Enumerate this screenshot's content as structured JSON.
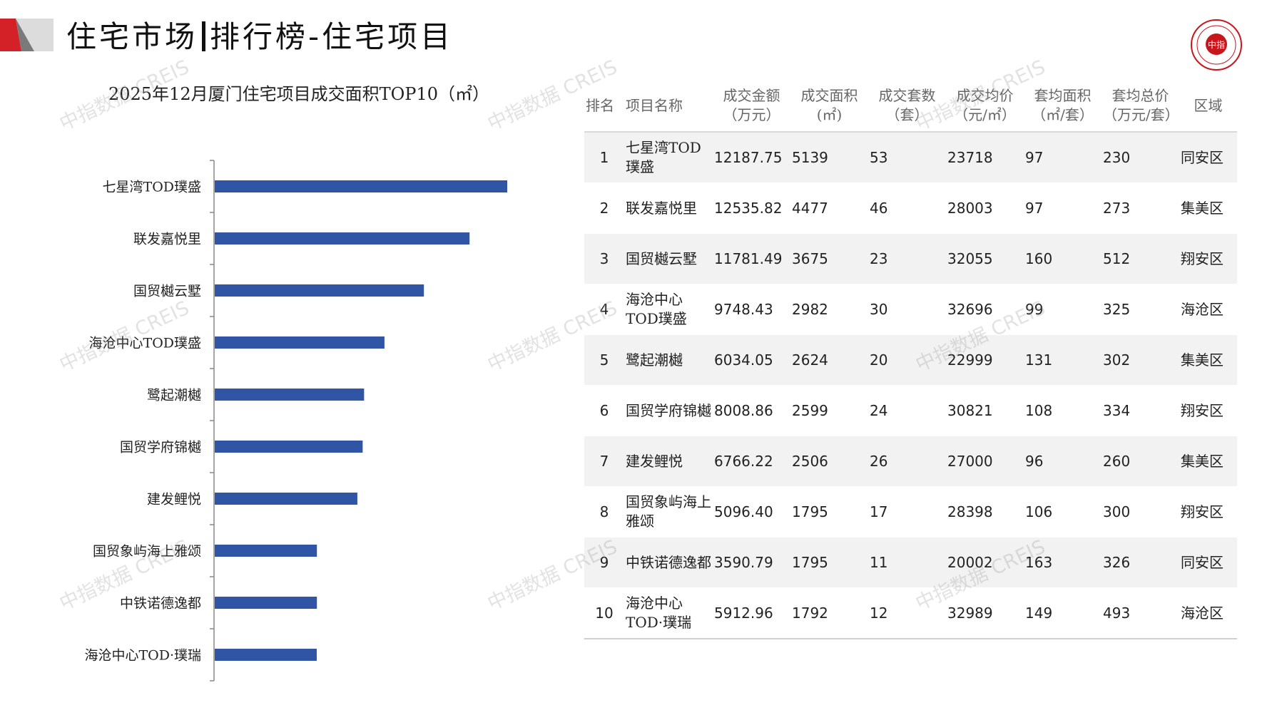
{
  "header": {
    "title_left": "住宅市场",
    "title_right": "排行榜-住宅项目",
    "logo_text": "中指"
  },
  "watermark": "中指数据 CREIS",
  "chart_data": {
    "type": "bar",
    "orientation": "horizontal",
    "title": "2025年12月厦门住宅项目成交面积TOP10（㎡）",
    "categories": [
      "七星湾TOD璞盛",
      "联发嘉悦里",
      "国贸樾云墅",
      "海沧中心TOD璞盛",
      "鹭起潮樾",
      "国贸学府锦樾",
      "建发鲤悦",
      "国贸象屿海上雅颂",
      "中铁诺德逸都",
      "海沧中心TOD·璞瑞"
    ],
    "values": [
      5139,
      4477,
      3675,
      2982,
      2624,
      2599,
      2506,
      1795,
      1795,
      1792
    ],
    "xlim": [
      0,
      6000
    ],
    "bar_color": "#2f55a4",
    "grid": false
  },
  "table": {
    "headers": [
      {
        "l1": "排名",
        "l2": ""
      },
      {
        "l1": "项目名称",
        "l2": ""
      },
      {
        "l1": "成交金额",
        "l2": "（万元）"
      },
      {
        "l1": "成交面积",
        "l2": "(㎡)"
      },
      {
        "l1": "成交套数",
        "l2": "（套）"
      },
      {
        "l1": "成交均价",
        "l2": "（元/㎡）"
      },
      {
        "l1": "套均面积",
        "l2": "（㎡/套）"
      },
      {
        "l1": "套均总价",
        "l2": "（万元/套）"
      },
      {
        "l1": "区域",
        "l2": ""
      }
    ],
    "rows": [
      {
        "rank": "1",
        "name": "七星湾TOD璞盛",
        "amount": "12187.75",
        "area": "5139",
        "units": "53",
        "price": "23718",
        "avg_area": "97",
        "avg_total": "230",
        "district": "同安区"
      },
      {
        "rank": "2",
        "name": "联发嘉悦里",
        "amount": "12535.82",
        "area": "4477",
        "units": "46",
        "price": "28003",
        "avg_area": "97",
        "avg_total": "273",
        "district": "集美区"
      },
      {
        "rank": "3",
        "name": "国贸樾云墅",
        "amount": "11781.49",
        "area": "3675",
        "units": "23",
        "price": "32055",
        "avg_area": "160",
        "avg_total": "512",
        "district": "翔安区"
      },
      {
        "rank": "4",
        "name": "海沧中心TOD璞盛",
        "amount": "9748.43",
        "area": "2982",
        "units": "30",
        "price": "32696",
        "avg_area": "99",
        "avg_total": "325",
        "district": "海沧区"
      },
      {
        "rank": "5",
        "name": "鹭起潮樾",
        "amount": "6034.05",
        "area": "2624",
        "units": "20",
        "price": "22999",
        "avg_area": "131",
        "avg_total": "302",
        "district": "集美区"
      },
      {
        "rank": "6",
        "name": "国贸学府锦樾",
        "amount": "8008.86",
        "area": "2599",
        "units": "24",
        "price": "30821",
        "avg_area": "108",
        "avg_total": "334",
        "district": "翔安区"
      },
      {
        "rank": "7",
        "name": "建发鲤悦",
        "amount": "6766.22",
        "area": "2506",
        "units": "26",
        "price": "27000",
        "avg_area": "96",
        "avg_total": "260",
        "district": "集美区"
      },
      {
        "rank": "8",
        "name": "国贸象屿海上雅颂",
        "amount": "5096.40",
        "area": "1795",
        "units": "17",
        "price": "28398",
        "avg_area": "106",
        "avg_total": "300",
        "district": "翔安区"
      },
      {
        "rank": "9",
        "name": "中铁诺德逸都",
        "amount": "3590.79",
        "area": "1795",
        "units": "11",
        "price": "20002",
        "avg_area": "163",
        "avg_total": "326",
        "district": "同安区"
      },
      {
        "rank": "10",
        "name": "海沧中心TOD·璞瑞",
        "amount": "5912.96",
        "area": "1792",
        "units": "12",
        "price": "32989",
        "avg_area": "149",
        "avg_total": "493",
        "district": "海沧区"
      }
    ]
  }
}
